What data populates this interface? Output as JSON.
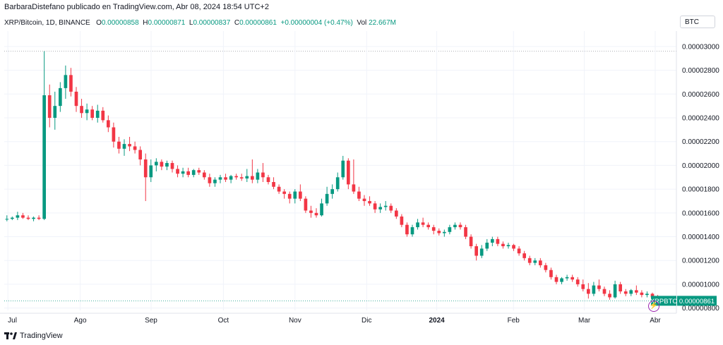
{
  "header": {
    "byline": "BarbaraDistefano publicado en TradingView.com, Abr 08, 2024 18:54 UTC+2"
  },
  "legend": {
    "symbol": "XRP/Bitcoin, 1D, BINANCE",
    "o_label": "O",
    "o_value": "0.00000858",
    "h_label": "H",
    "h_value": "0.00000871",
    "l_label": "L",
    "l_value": "0.00000837",
    "c_label": "C",
    "c_value": "0.00000861",
    "change": "+0.00000004 (+0.47%)",
    "vol_label": "Vol",
    "vol_value": "22.667M"
  },
  "currency": "BTC",
  "price_badge": {
    "symbol": "XRPBTC",
    "value": "0.00000861"
  },
  "brand": {
    "name": "TradingView"
  },
  "colors": {
    "up": "#089981",
    "down": "#f23645",
    "grid": "#f0f3fa",
    "axis_text": "#131722",
    "badge": "#089981"
  },
  "icons": {
    "flash": "lightning-icon",
    "logo": "tradingview-logo-icon"
  },
  "chart_data": {
    "type": "candlestick",
    "y_ticks": [
      "0.00003000",
      "0.00002800",
      "0.00002600",
      "0.00002400",
      "0.00002200",
      "0.00002000",
      "0.00001800",
      "0.00001600",
      "0.00001400",
      "0.00001200",
      "0.00001000",
      "0.00000800"
    ],
    "y_tick_values": [
      3e-05,
      2.8e-05,
      2.6e-05,
      2.4e-05,
      2.2e-05,
      2e-05,
      1.8e-05,
      1.6e-05,
      1.4e-05,
      1.2e-05,
      1e-05,
      8e-06
    ],
    "ylim": [
      7.8e-06,
      3.13e-05
    ],
    "x_ticks": [
      "Jul",
      "Ago",
      "Sep",
      "Oct",
      "Nov",
      "Dic",
      "2024",
      "Feb",
      "Mar",
      "Abr"
    ],
    "x_tick_index": [
      5,
      104,
      201,
      300,
      398,
      496,
      592,
      697,
      794,
      891
    ],
    "x_index_range": [
      0,
      920
    ],
    "last_close": 8.61e-06,
    "series": [
      {
        "o": 1.55e-05,
        "h": 1.58e-05,
        "l": 1.53e-05,
        "c": 1.55e-05
      },
      {
        "o": 1.55e-05,
        "h": 1.57e-05,
        "l": 1.54e-05,
        "c": 1.56e-05
      },
      {
        "o": 1.56e-05,
        "h": 1.61e-05,
        "l": 1.54e-05,
        "c": 1.58e-05
      },
      {
        "o": 1.58e-05,
        "h": 1.6e-05,
        "l": 1.55e-05,
        "c": 1.56e-05
      },
      {
        "o": 1.56e-05,
        "h": 1.58e-05,
        "l": 1.54e-05,
        "c": 1.55e-05
      },
      {
        "o": 1.55e-05,
        "h": 1.57e-05,
        "l": 1.53e-05,
        "c": 1.56e-05
      },
      {
        "o": 1.56e-05,
        "h": 1.58e-05,
        "l": 1.54e-05,
        "c": 1.55e-05
      },
      {
        "o": 1.55e-05,
        "h": 2.96e-05,
        "l": 1.54e-05,
        "c": 2.59e-05
      },
      {
        "o": 2.59e-05,
        "h": 2.68e-05,
        "l": 2.32e-05,
        "c": 2.4e-05
      },
      {
        "o": 2.4e-05,
        "h": 2.62e-05,
        "l": 2.3e-05,
        "c": 2.5e-05
      },
      {
        "o": 2.5e-05,
        "h": 2.7e-05,
        "l": 2.45e-05,
        "c": 2.65e-05
      },
      {
        "o": 2.65e-05,
        "h": 2.84e-05,
        "l": 2.56e-05,
        "c": 2.76e-05
      },
      {
        "o": 2.76e-05,
        "h": 2.82e-05,
        "l": 2.58e-05,
        "c": 2.62e-05
      },
      {
        "o": 2.62e-05,
        "h": 2.66e-05,
        "l": 2.45e-05,
        "c": 2.5e-05
      },
      {
        "o": 2.5e-05,
        "h": 2.56e-05,
        "l": 2.4e-05,
        "c": 2.44e-05
      },
      {
        "o": 2.44e-05,
        "h": 2.52e-05,
        "l": 2.38e-05,
        "c": 2.47e-05
      },
      {
        "o": 2.47e-05,
        "h": 2.5e-05,
        "l": 2.38e-05,
        "c": 2.4e-05
      },
      {
        "o": 2.4e-05,
        "h": 2.51e-05,
        "l": 2.36e-05,
        "c": 2.46e-05
      },
      {
        "o": 2.46e-05,
        "h": 2.49e-05,
        "l": 2.36e-05,
        "c": 2.38e-05
      },
      {
        "o": 2.38e-05,
        "h": 2.42e-05,
        "l": 2.28e-05,
        "c": 2.32e-05
      },
      {
        "o": 2.32e-05,
        "h": 2.36e-05,
        "l": 2.15e-05,
        "c": 2.2e-05
      },
      {
        "o": 2.2e-05,
        "h": 2.24e-05,
        "l": 2.1e-05,
        "c": 2.14e-05
      },
      {
        "o": 2.14e-05,
        "h": 2.22e-05,
        "l": 2.08e-05,
        "c": 2.18e-05
      },
      {
        "o": 2.18e-05,
        "h": 2.24e-05,
        "l": 2.12e-05,
        "c": 2.16e-05
      },
      {
        "o": 2.16e-05,
        "h": 2.2e-05,
        "l": 2.1e-05,
        "c": 2.13e-05
      },
      {
        "o": 2.13e-05,
        "h": 2.16e-05,
        "l": 2e-05,
        "c": 2.05e-05
      },
      {
        "o": 2.05e-05,
        "h": 2.1e-05,
        "l": 1.7e-05,
        "c": 1.9e-05
      },
      {
        "o": 1.9e-05,
        "h": 2.05e-05,
        "l": 1.86e-05,
        "c": 2e-05
      },
      {
        "o": 2e-05,
        "h": 2.06e-05,
        "l": 1.95e-05,
        "c": 2.03e-05
      },
      {
        "o": 2.03e-05,
        "h": 2.05e-05,
        "l": 1.96e-05,
        "c": 1.99e-05
      },
      {
        "o": 1.99e-05,
        "h": 2.04e-05,
        "l": 1.96e-05,
        "c": 2.02e-05
      },
      {
        "o": 2.02e-05,
        "h": 2.04e-05,
        "l": 1.94e-05,
        "c": 1.97e-05
      },
      {
        "o": 1.97e-05,
        "h": 2e-05,
        "l": 1.9e-05,
        "c": 1.93e-05
      },
      {
        "o": 1.93e-05,
        "h": 1.98e-05,
        "l": 1.9e-05,
        "c": 1.95e-05
      },
      {
        "o": 1.95e-05,
        "h": 1.98e-05,
        "l": 1.9e-05,
        "c": 1.92e-05
      },
      {
        "o": 1.92e-05,
        "h": 1.97e-05,
        "l": 1.9e-05,
        "c": 1.96e-05
      },
      {
        "o": 1.96e-05,
        "h": 1.98e-05,
        "l": 1.92e-05,
        "c": 1.94e-05
      },
      {
        "o": 1.94e-05,
        "h": 1.96e-05,
        "l": 1.88e-05,
        "c": 1.9e-05
      },
      {
        "o": 1.9e-05,
        "h": 1.93e-05,
        "l": 1.82e-05,
        "c": 1.85e-05
      },
      {
        "o": 1.85e-05,
        "h": 1.9e-05,
        "l": 1.82e-05,
        "c": 1.88e-05
      },
      {
        "o": 1.88e-05,
        "h": 1.92e-05,
        "l": 1.85e-05,
        "c": 1.9e-05
      },
      {
        "o": 1.9e-05,
        "h": 1.93e-05,
        "l": 1.86e-05,
        "c": 1.88e-05
      },
      {
        "o": 1.88e-05,
        "h": 1.92e-05,
        "l": 1.85e-05,
        "c": 1.91e-05
      },
      {
        "o": 1.91e-05,
        "h": 1.93e-05,
        "l": 1.88e-05,
        "c": 1.9e-05
      },
      {
        "o": 1.9e-05,
        "h": 1.93e-05,
        "l": 1.87e-05,
        "c": 1.89e-05
      },
      {
        "o": 1.89e-05,
        "h": 1.97e-05,
        "l": 1.86e-05,
        "c": 1.91e-05
      },
      {
        "o": 1.91e-05,
        "h": 2.05e-05,
        "l": 1.85e-05,
        "c": 1.88e-05
      },
      {
        "o": 1.88e-05,
        "h": 1.97e-05,
        "l": 1.85e-05,
        "c": 1.94e-05
      },
      {
        "o": 1.94e-05,
        "h": 2.02e-05,
        "l": 1.86e-05,
        "c": 1.9e-05
      },
      {
        "o": 1.9e-05,
        "h": 1.92e-05,
        "l": 1.84e-05,
        "c": 1.86e-05
      },
      {
        "o": 1.86e-05,
        "h": 1.9e-05,
        "l": 1.8e-05,
        "c": 1.82e-05
      },
      {
        "o": 1.82e-05,
        "h": 1.84e-05,
        "l": 1.76e-05,
        "c": 1.78e-05
      },
      {
        "o": 1.78e-05,
        "h": 1.8e-05,
        "l": 1.72e-05,
        "c": 1.76e-05
      },
      {
        "o": 1.76e-05,
        "h": 1.78e-05,
        "l": 1.68e-05,
        "c": 1.72e-05
      },
      {
        "o": 1.72e-05,
        "h": 1.8e-05,
        "l": 1.68e-05,
        "c": 1.78e-05
      },
      {
        "o": 1.78e-05,
        "h": 1.84e-05,
        "l": 1.7e-05,
        "c": 1.72e-05
      },
      {
        "o": 1.72e-05,
        "h": 1.74e-05,
        "l": 1.6e-05,
        "c": 1.62e-05
      },
      {
        "o": 1.62e-05,
        "h": 1.66e-05,
        "l": 1.56e-05,
        "c": 1.6e-05
      },
      {
        "o": 1.6e-05,
        "h": 1.64e-05,
        "l": 1.56e-05,
        "c": 1.58e-05
      },
      {
        "o": 1.58e-05,
        "h": 1.72e-05,
        "l": 1.57e-05,
        "c": 1.68e-05
      },
      {
        "o": 1.68e-05,
        "h": 1.82e-05,
        "l": 1.66e-05,
        "c": 1.76e-05
      },
      {
        "o": 1.76e-05,
        "h": 1.84e-05,
        "l": 1.72e-05,
        "c": 1.8e-05
      },
      {
        "o": 1.8e-05,
        "h": 1.94e-05,
        "l": 1.78e-05,
        "c": 1.9e-05
      },
      {
        "o": 1.9e-05,
        "h": 2.08e-05,
        "l": 1.88e-05,
        "c": 2.04e-05
      },
      {
        "o": 2.04e-05,
        "h": 2.06e-05,
        "l": 1.8e-05,
        "c": 1.84e-05
      },
      {
        "o": 1.84e-05,
        "h": 2.05e-05,
        "l": 1.76e-05,
        "c": 1.78e-05
      },
      {
        "o": 1.78e-05,
        "h": 1.82e-05,
        "l": 1.7e-05,
        "c": 1.72e-05
      },
      {
        "o": 1.72e-05,
        "h": 1.75e-05,
        "l": 1.66e-05,
        "c": 1.7e-05
      },
      {
        "o": 1.7e-05,
        "h": 1.74e-05,
        "l": 1.66e-05,
        "c": 1.68e-05
      },
      {
        "o": 1.68e-05,
        "h": 1.7e-05,
        "l": 1.6e-05,
        "c": 1.63e-05
      },
      {
        "o": 1.63e-05,
        "h": 1.68e-05,
        "l": 1.6e-05,
        "c": 1.65e-05
      },
      {
        "o": 1.65e-05,
        "h": 1.7e-05,
        "l": 1.62e-05,
        "c": 1.66e-05
      },
      {
        "o": 1.66e-05,
        "h": 1.68e-05,
        "l": 1.6e-05,
        "c": 1.62e-05
      },
      {
        "o": 1.62e-05,
        "h": 1.64e-05,
        "l": 1.55e-05,
        "c": 1.57e-05
      },
      {
        "o": 1.57e-05,
        "h": 1.59e-05,
        "l": 1.48e-05,
        "c": 1.5e-05
      },
      {
        "o": 1.5e-05,
        "h": 1.52e-05,
        "l": 1.4e-05,
        "c": 1.42e-05
      },
      {
        "o": 1.42e-05,
        "h": 1.5e-05,
        "l": 1.4e-05,
        "c": 1.48e-05
      },
      {
        "o": 1.48e-05,
        "h": 1.55e-05,
        "l": 1.46e-05,
        "c": 1.52e-05
      },
      {
        "o": 1.52e-05,
        "h": 1.56e-05,
        "l": 1.48e-05,
        "c": 1.5e-05
      },
      {
        "o": 1.5e-05,
        "h": 1.52e-05,
        "l": 1.46e-05,
        "c": 1.48e-05
      },
      {
        "o": 1.48e-05,
        "h": 1.5e-05,
        "l": 1.42e-05,
        "c": 1.45e-05
      },
      {
        "o": 1.45e-05,
        "h": 1.47e-05,
        "l": 1.41e-05,
        "c": 1.43e-05
      },
      {
        "o": 1.43e-05,
        "h": 1.46e-05,
        "l": 1.4e-05,
        "c": 1.44e-05
      },
      {
        "o": 1.44e-05,
        "h": 1.5e-05,
        "l": 1.42e-05,
        "c": 1.48e-05
      },
      {
        "o": 1.48e-05,
        "h": 1.52e-05,
        "l": 1.46e-05,
        "c": 1.5e-05
      },
      {
        "o": 1.5e-05,
        "h": 1.52e-05,
        "l": 1.46e-05,
        "c": 1.48e-05
      },
      {
        "o": 1.48e-05,
        "h": 1.5e-05,
        "l": 1.38e-05,
        "c": 1.4e-05
      },
      {
        "o": 1.4e-05,
        "h": 1.42e-05,
        "l": 1.3e-05,
        "c": 1.32e-05
      },
      {
        "o": 1.32e-05,
        "h": 1.34e-05,
        "l": 1.2e-05,
        "c": 1.24e-05
      },
      {
        "o": 1.24e-05,
        "h": 1.33e-05,
        "l": 1.22e-05,
        "c": 1.3e-05
      },
      {
        "o": 1.3e-05,
        "h": 1.38e-05,
        "l": 1.28e-05,
        "c": 1.35e-05
      },
      {
        "o": 1.35e-05,
        "h": 1.4e-05,
        "l": 1.32e-05,
        "c": 1.38e-05
      },
      {
        "o": 1.38e-05,
        "h": 1.4e-05,
        "l": 1.32e-05,
        "c": 1.34e-05
      },
      {
        "o": 1.34e-05,
        "h": 1.36e-05,
        "l": 1.3e-05,
        "c": 1.32e-05
      },
      {
        "o": 1.32e-05,
        "h": 1.35e-05,
        "l": 1.3e-05,
        "c": 1.33e-05
      },
      {
        "o": 1.33e-05,
        "h": 1.34e-05,
        "l": 1.28e-05,
        "c": 1.3e-05
      },
      {
        "o": 1.3e-05,
        "h": 1.32e-05,
        "l": 1.24e-05,
        "c": 1.26e-05
      },
      {
        "o": 1.26e-05,
        "h": 1.28e-05,
        "l": 1.2e-05,
        "c": 1.22e-05
      },
      {
        "o": 1.22e-05,
        "h": 1.24e-05,
        "l": 1.16e-05,
        "c": 1.18e-05
      },
      {
        "o": 1.18e-05,
        "h": 1.22e-05,
        "l": 1.16e-05,
        "c": 1.2e-05
      },
      {
        "o": 1.2e-05,
        "h": 1.22e-05,
        "l": 1.14e-05,
        "c": 1.16e-05
      },
      {
        "o": 1.16e-05,
        "h": 1.18e-05,
        "l": 1.1e-05,
        "c": 1.12e-05
      },
      {
        "o": 1.12e-05,
        "h": 1.14e-05,
        "l": 1.04e-05,
        "c": 1.06e-05
      },
      {
        "o": 1.06e-05,
        "h": 1.08e-05,
        "l": 1e-05,
        "c": 1.02e-05
      },
      {
        "o": 1.02e-05,
        "h": 1.06e-05,
        "l": 1e-05,
        "c": 1.05e-05
      },
      {
        "o": 1.05e-05,
        "h": 1.08e-05,
        "l": 1.03e-05,
        "c": 1.06e-05
      },
      {
        "o": 1.06e-05,
        "h": 1.08e-05,
        "l": 1.02e-05,
        "c": 1.04e-05
      },
      {
        "o": 1.04e-05,
        "h": 1.06e-05,
        "l": 9.8e-06,
        "c": 1e-05
      },
      {
        "o": 1e-05,
        "h": 1.04e-05,
        "l": 9.4e-06,
        "c": 9.6e-06
      },
      {
        "o": 9.6e-06,
        "h": 1.01e-05,
        "l": 8.8e-06,
        "c": 9.2e-06
      },
      {
        "o": 9.2e-06,
        "h": 1.02e-05,
        "l": 9e-06,
        "c": 9.9e-06
      },
      {
        "o": 9.9e-06,
        "h": 1.04e-05,
        "l": 9.4e-06,
        "c": 9.6e-06
      },
      {
        "o": 9.6e-06,
        "h": 9.8e-06,
        "l": 9e-06,
        "c": 9.2e-06
      },
      {
        "o": 9.2e-06,
        "h": 9.5e-06,
        "l": 8.7e-06,
        "c": 8.9e-06
      },
      {
        "o": 8.9e-06,
        "h": 1.03e-05,
        "l": 8.8e-06,
        "c": 1e-05
      },
      {
        "o": 1e-05,
        "h": 1.02e-05,
        "l": 9.2e-06,
        "c": 9.4e-06
      },
      {
        "o": 9.4e-06,
        "h": 9.6e-06,
        "l": 9e-06,
        "c": 9.2e-06
      },
      {
        "o": 9.2e-06,
        "h": 9.6e-06,
        "l": 9e-06,
        "c": 9.5e-06
      },
      {
        "o": 9.5e-06,
        "h": 9.9e-06,
        "l": 9.1e-06,
        "c": 9.3e-06
      },
      {
        "o": 9.3e-06,
        "h": 9.5e-06,
        "l": 8.9e-06,
        "c": 9.1e-06
      },
      {
        "o": 9.1e-06,
        "h": 9.4e-06,
        "l": 8.9e-06,
        "c": 9.2e-06
      },
      {
        "o": 9.2e-06,
        "h": 9.3e-06,
        "l": 8.8e-06,
        "c": 8.9e-06
      },
      {
        "o": 8.9e-06,
        "h": 9.1e-06,
        "l": 8.6e-06,
        "c": 8.8e-06
      },
      {
        "o": 8.8e-06,
        "h": 9e-06,
        "l": 8.5e-06,
        "c": 8.7e-06
      },
      {
        "o": 8.7e-06,
        "h": 8.9e-06,
        "l": 8.4e-06,
        "c": 8.6e-06
      },
      {
        "o": 8.58e-06,
        "h": 8.71e-06,
        "l": 8.37e-06,
        "c": 8.61e-06
      }
    ]
  }
}
